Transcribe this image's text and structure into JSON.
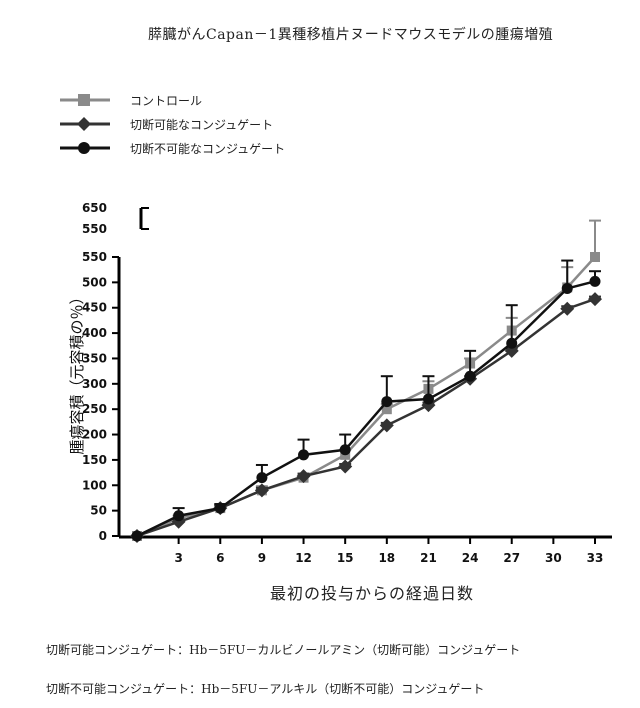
{
  "title": "膵臓がんCapan－1異種移植片ヌードマウスモデルの腫瘍増殖",
  "notes": [
    "切断可能コンジュゲート：Hb－5FU－カルビノールアミン（切断可能）コンジュゲート",
    "切断不可能コンジュゲート：Hb－5FU－アルキル（切断不可能）コンジュゲート"
  ],
  "chart_data": {
    "type": "line",
    "xlabel": "最初の投与からの経過日数",
    "ylabel": "腫瘍容積（元容積の％）",
    "x": [
      0,
      3,
      6,
      9,
      12,
      15,
      18,
      21,
      24,
      27,
      31,
      33
    ],
    "xticks": [
      3,
      6,
      9,
      12,
      15,
      18,
      21,
      24,
      27,
      30,
      33
    ],
    "yticks": [
      0,
      50,
      100,
      150,
      200,
      250,
      300,
      350,
      400,
      450,
      500,
      550
    ],
    "yticks_upper": [
      550,
      650
    ],
    "ylim": [
      0,
      650
    ],
    "axis_break": true,
    "series": [
      {
        "name": "コントロール",
        "marker": "square",
        "color": "#8a8a8a",
        "values": [
          0,
          35,
          55,
          90,
          115,
          160,
          250,
          290,
          340,
          405,
          490,
          550
        ],
        "err": [
          0,
          5,
          5,
          8,
          5,
          10,
          10,
          15,
          10,
          25,
          40,
          40
        ]
      },
      {
        "name": "切断可能なコンジュゲート",
        "marker": "diamond",
        "color": "#333333",
        "values": [
          0,
          28,
          55,
          90,
          118,
          137,
          218,
          258,
          310,
          365,
          448,
          467
        ],
        "err": [
          0,
          5,
          5,
          5,
          5,
          5,
          5,
          5,
          5,
          5,
          5,
          5
        ]
      },
      {
        "name": "切断不可能なコンジュゲート",
        "marker": "circle",
        "color": "#111111",
        "values": [
          0,
          40,
          55,
          115,
          160,
          170,
          265,
          270,
          315,
          380,
          488,
          502
        ],
        "err": [
          0,
          15,
          8,
          25,
          30,
          30,
          50,
          45,
          50,
          75,
          55,
          20
        ]
      }
    ]
  }
}
